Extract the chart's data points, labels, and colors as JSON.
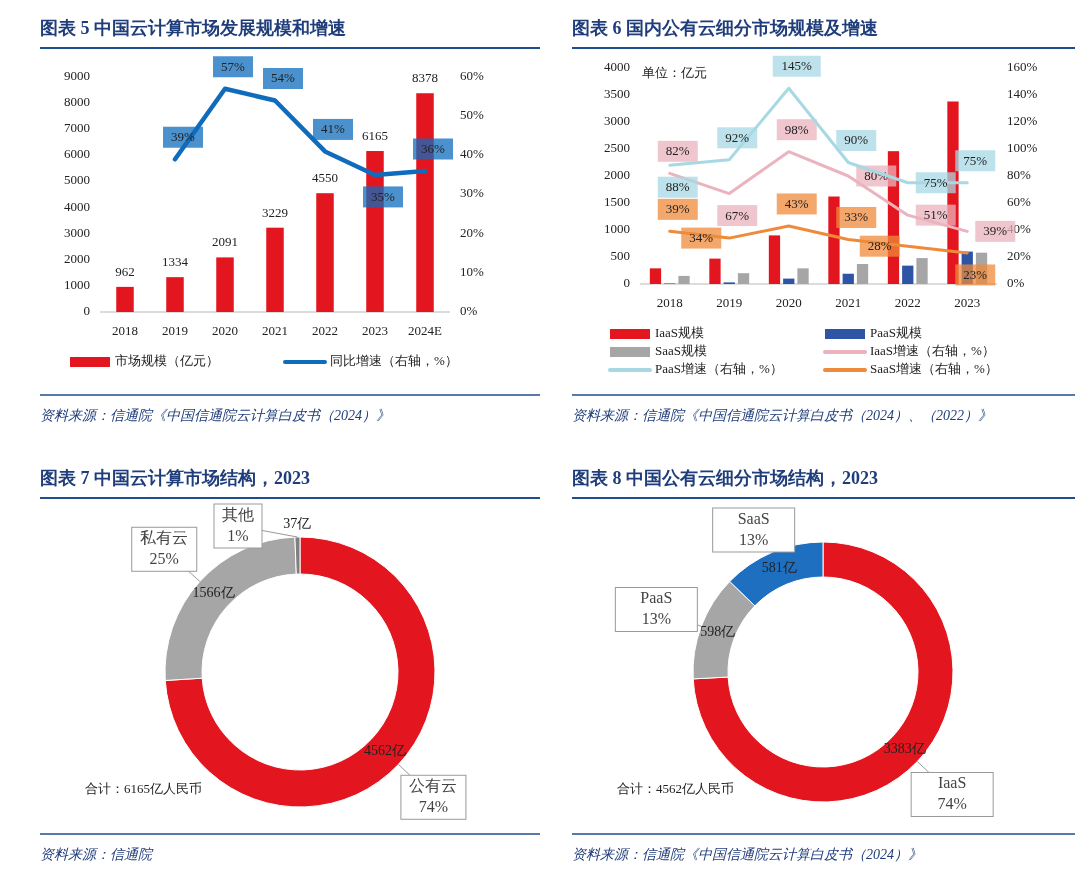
{
  "chart_data": [
    {
      "type": "bar",
      "title": "图表 5   中国云计算市场发展规模和增速",
      "categories": [
        "2018",
        "2019",
        "2020",
        "2021",
        "2022",
        "2023",
        "2024E"
      ],
      "series": [
        {
          "name": "市场规模（亿元）",
          "color": "#e3161f",
          "values": [
            962,
            1334,
            2091,
            3229,
            4550,
            6165,
            8378
          ]
        },
        {
          "name": "同比增速（右轴，%）",
          "type": "line",
          "axis": "y2",
          "color": "#0f6cbd",
          "values": [
            null,
            39,
            57,
            54,
            41,
            35,
            36
          ],
          "value_labels": [
            null,
            "39%",
            "57%",
            "54%",
            "41%",
            "35%",
            "36%"
          ]
        }
      ],
      "ylim": [
        0,
        9000
      ],
      "yticks": [
        0,
        1000,
        2000,
        3000,
        4000,
        5000,
        6000,
        7000,
        8000,
        9000
      ],
      "y2lim": [
        0,
        60
      ],
      "y2ticks": [
        {
          "value": 0,
          "label": "0%"
        },
        {
          "value": 10,
          "label": "10%"
        },
        {
          "value": 20,
          "label": "20%"
        },
        {
          "value": 30,
          "label": "30%"
        },
        {
          "value": 40,
          "label": "40%"
        },
        {
          "value": 50,
          "label": "50%"
        },
        {
          "value": 60,
          "label": "60%"
        }
      ],
      "data_labels": true,
      "legend": "bottom",
      "annotations": [
        "资料来源：信通院《中国信通院云计算白皮书（2024）》"
      ]
    },
    {
      "type": "bar",
      "title": "图表 6   国内公有云细分市场规模及增速",
      "categories": [
        "2018",
        "2019",
        "2020",
        "2021",
        "2022",
        "2023"
      ],
      "series": [
        {
          "name": "IaaS规模",
          "color": "#e3161f",
          "values": [
            290,
            470,
            900,
            1620,
            2460,
            3380
          ]
        },
        {
          "name": "PaaS规模",
          "color": "#2e55a5",
          "values": [
            10,
            30,
            100,
            190,
            340,
            600
          ]
        },
        {
          "name": "SaaS规模",
          "color": "#a6a6a6",
          "values": [
            150,
            200,
            290,
            370,
            480,
            580
          ]
        },
        {
          "name": "IaaS增速（右轴，%）",
          "type": "line",
          "axis": "y2",
          "color": "#eab3bd",
          "values": [
            82,
            67,
            98,
            80,
            51,
            39
          ],
          "value_labels": [
            "82%",
            "67%",
            "98%",
            "80%",
            "51%",
            "39%"
          ]
        },
        {
          "name": "PaaS增速（右轴，%）",
          "type": "line",
          "axis": "y2",
          "color": "#a8d8e4",
          "values": [
            88,
            92,
            145,
            90,
            75,
            75
          ],
          "value_labels": [
            "88%",
            "92%",
            "145%",
            "90%",
            "75%",
            "75%"
          ]
        },
        {
          "name": "SaaS增速（右轴，%）",
          "type": "line",
          "axis": "y2",
          "color": "#ef8a3a",
          "values": [
            39,
            34,
            43,
            33,
            28,
            23
          ],
          "value_labels": [
            "39%",
            "34%",
            "43%",
            "33%",
            "28%",
            "23%"
          ]
        }
      ],
      "ylim": [
        0,
        4000
      ],
      "yticks": [
        0,
        500,
        1000,
        1500,
        2000,
        2500,
        3000,
        3500,
        4000
      ],
      "y2lim": [
        0,
        160
      ],
      "y2ticks": [
        {
          "value": 0,
          "label": "0%"
        },
        {
          "value": 20,
          "label": "20%"
        },
        {
          "value": 40,
          "label": "40%"
        },
        {
          "value": 60,
          "label": "60%"
        },
        {
          "value": 80,
          "label": "80%"
        },
        {
          "value": 100,
          "label": "100%"
        },
        {
          "value": 120,
          "label": "120%"
        },
        {
          "value": 140,
          "label": "140%"
        },
        {
          "value": 160,
          "label": "160%"
        }
      ],
      "legend": "bottom",
      "annotations": [
        "单位：亿元",
        "资料来源：信通院《中国信通院云计算白皮书（2024）、（2022）》"
      ]
    },
    {
      "type": "donut",
      "title": "图表 7   中国云计算市场结构，2023",
      "categories": [
        "公有云",
        "私有云",
        "其他"
      ],
      "values": [
        4562,
        1566,
        37
      ],
      "colors": [
        "#e3161f",
        "#a6a6a6",
        "#7f7f7f"
      ],
      "value_labels": [
        "4562亿",
        "1566亿",
        "37亿"
      ],
      "annotations": [
        {
          "text": "74%",
          "x": "公有云"
        },
        {
          "text": "25%",
          "x": "私有云"
        },
        {
          "text": "1%",
          "x": "其他"
        },
        "合计：6165亿人民币",
        "资料来源：信通院"
      ]
    },
    {
      "type": "donut",
      "title": "图表 8   中国公有云细分市场结构，2023",
      "categories": [
        "IaaS",
        "PaaS",
        "SaaS"
      ],
      "values": [
        3383,
        598,
        581
      ],
      "colors": [
        "#e3161f",
        "#a6a6a6",
        "#1f6fc0"
      ],
      "value_labels": [
        "3383亿",
        "598亿",
        "581亿"
      ],
      "annotations": [
        {
          "text": "74%",
          "x": "IaaS"
        },
        {
          "text": "13%",
          "x": "PaaS"
        },
        {
          "text": "13%",
          "x": "SaaS"
        },
        "合计：4562亿人民币",
        "资料来源：信通院《中国信通院云计算白皮书（2024）》"
      ]
    }
  ]
}
